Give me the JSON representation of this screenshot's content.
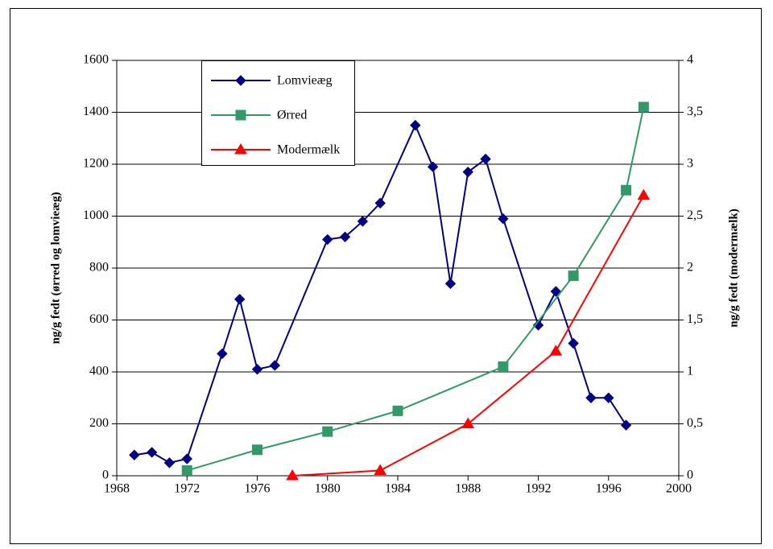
{
  "chart_data": {
    "type": "line",
    "xlabel": "",
    "ylabel": "ng/g fedt (ørred og lomvieæg)",
    "y2label": "ng/g fedt (modermælk)",
    "xlim": [
      1968,
      2000
    ],
    "xticks": [
      1968,
      1972,
      1976,
      1980,
      1984,
      1988,
      1992,
      1996,
      2000
    ],
    "ylim": [
      0,
      1600
    ],
    "yticks": [
      0,
      200,
      400,
      600,
      800,
      1000,
      1200,
      1400,
      1600
    ],
    "y2lim": [
      0,
      4
    ],
    "y2ticks": [
      0,
      {
        "value": 0.5,
        "label": "0,5"
      },
      1,
      {
        "value": 1.5,
        "label": "1,5"
      },
      2,
      {
        "value": 2.5,
        "label": "2,5"
      },
      3,
      {
        "value": 3.5,
        "label": "3,5"
      },
      4
    ],
    "grid": true,
    "legend": "upper left",
    "series": [
      {
        "name": "Lomvieæg",
        "color": "#000080",
        "marker": "diamond",
        "x": [
          1969,
          1970,
          1971,
          1972,
          1974,
          1975,
          1976,
          1977,
          1980,
          1981,
          1982,
          1983,
          1985,
          1986,
          1987,
          1988,
          1989,
          1990,
          1992,
          1993,
          1994,
          1995,
          1996,
          1997
        ],
        "values": [
          80,
          90,
          50,
          65,
          470,
          680,
          410,
          425,
          910,
          920,
          980,
          1050,
          1350,
          1190,
          740,
          1170,
          1220,
          990,
          580,
          710,
          510,
          300,
          300,
          195
        ]
      },
      {
        "name": "Ørred",
        "color": "#339966",
        "marker": "square",
        "x": [
          1972,
          1976,
          1980,
          1984,
          1990,
          1994,
          1997,
          1998
        ],
        "values": [
          20,
          100,
          170,
          250,
          420,
          770,
          1100,
          1420
        ]
      },
      {
        "name": "Modermælk",
        "color": "#ff0000",
        "marker": "triangle",
        "axis": "y2",
        "x": [
          1978,
          1983,
          1988,
          1993,
          1998
        ],
        "values": [
          0,
          0.05,
          0.5,
          1.2,
          2.7
        ]
      }
    ]
  }
}
